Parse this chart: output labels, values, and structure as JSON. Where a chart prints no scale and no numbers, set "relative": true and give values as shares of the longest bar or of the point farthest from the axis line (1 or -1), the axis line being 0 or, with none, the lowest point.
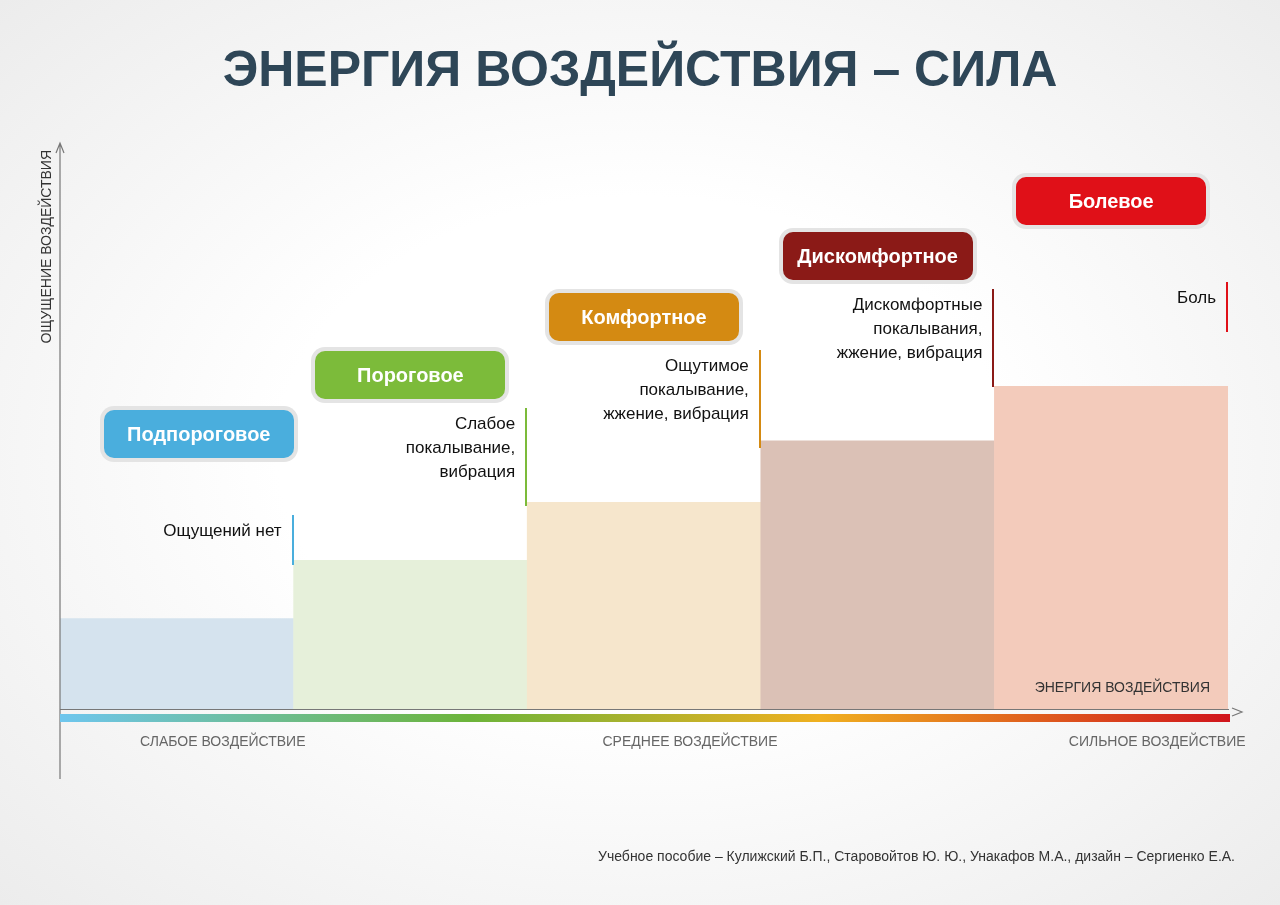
{
  "chart_data": {
    "type": "bar",
    "title": "ЭНЕРГИЯ ВОЗДЕЙСТВИЯ – СИЛА",
    "xlabel": "ЭНЕРГИЯ ВОЗДЕЙСТВИЯ",
    "ylabel": "ОЩУЩЕНИЕ ВОЗДЕЙСТВИЯ",
    "categories": [
      null,
      null,
      null,
      null,
      null
    ],
    "values": [
      0.28,
      0.46,
      0.64,
      0.83,
      1
    ],
    "colors": [
      "#d5e3ee",
      "#e6f0da",
      "#f6e6cc",
      "#dbc1b6",
      "#f3cbbb"
    ],
    "relative": true,
    "annotations": [
      "Подпороговое",
      "Пороговое",
      "Комфортное",
      "Дискомфортное",
      "Болевое",
      "Ощущений нет",
      "Слабое\nпокалывание,\nвибрация",
      "Ощутимое\nпокалывание,\nжжение, вибрация",
      "Дискомфортные\nпокалывания,\nжжение, вибрация",
      "Боль",
      "СЛАБОЕ ВОЗДЕЙСТВИЕ",
      "СРЕДНЕЕ ВОЗДЕЙСТВИЕ",
      "СИЛЬНОЕ ВОЗДЕЙСТВИЕ",
      "Учебное пособие –  Кулижский Б.П., Старовойтов Ю. Ю., Унакафов М.А., дизайн – Сергиенко Е.А."
    ]
  }
}
